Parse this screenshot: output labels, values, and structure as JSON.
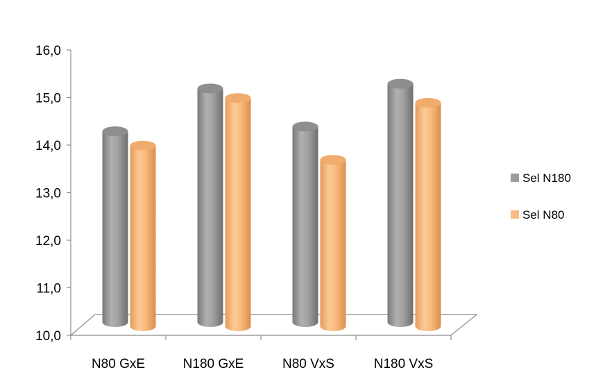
{
  "chart_data": {
    "type": "bar",
    "title": "",
    "xlabel": "",
    "ylabel": "",
    "categories": [
      "N80 GxE",
      "N180 GxE",
      "N80 VxS",
      "N180 VxS"
    ],
    "series": [
      {
        "name": "Sel N180",
        "values": [
          14.1,
          15.0,
          14.2,
          15.1
        ],
        "color": "#9c9c9c"
      },
      {
        "name": "Sel N80",
        "values": [
          13.8,
          14.8,
          13.5,
          14.7
        ],
        "color": "#f9bd84"
      }
    ],
    "y_ticks": [
      "10,0",
      "11,0",
      "12,0",
      "13,0",
      "14,0",
      "15,0",
      "16,0"
    ],
    "ylim": [
      10,
      16
    ],
    "grid": false,
    "legend_position": "right",
    "style": "3d-cylinder"
  }
}
